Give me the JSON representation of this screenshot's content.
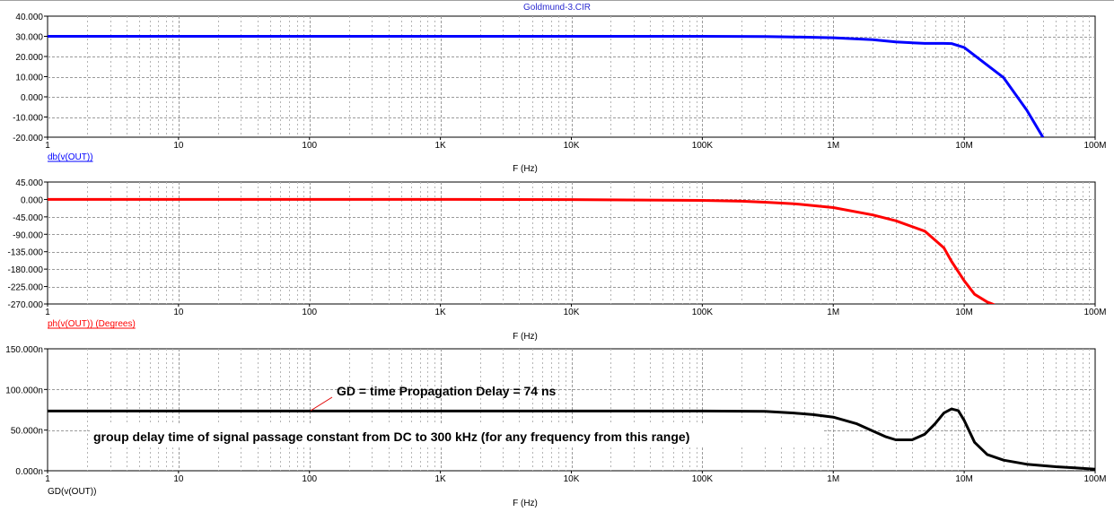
{
  "window_title": "Goldmund-3.CIR",
  "x_tick_labels": [
    "1",
    "10",
    "100",
    "1K",
    "10K",
    "100K",
    "1M",
    "10M",
    "100M"
  ],
  "chart_data": [
    {
      "type": "line",
      "trace_label": "db(v(OUT))",
      "xlabel": "F (Hz)",
      "x_scale": "log",
      "xlim": [
        1,
        100000000
      ],
      "ylim": [
        -20,
        40
      ],
      "y_ticks": [
        "40.000",
        "30.000",
        "20.000",
        "10.000",
        "0.000",
        "-10.000",
        "-20.000"
      ],
      "grid": true,
      "color": "#0000ff",
      "series": [
        {
          "x": [
            1,
            10,
            100,
            1000,
            10000,
            100000,
            300000,
            500000,
            1000000,
            2000000,
            3000000,
            5000000,
            7000000,
            8000000,
            10000000,
            20000000,
            30000000,
            40000000
          ],
          "values": [
            30,
            30,
            30,
            30,
            30,
            30,
            29.9,
            29.7,
            29.3,
            28.3,
            27.2,
            26.5,
            26.5,
            26.4,
            24.5,
            9.5,
            -6.5,
            -20.2
          ]
        }
      ]
    },
    {
      "type": "line",
      "trace_label": "ph(v(OUT)) (Degrees)",
      "xlabel": "F (Hz)",
      "x_scale": "log",
      "xlim": [
        1,
        100000000
      ],
      "ylim": [
        -270,
        45
      ],
      "y_ticks": [
        "45.000",
        "0.000",
        "-45.000",
        "-90.000",
        "-135.000",
        "-180.000",
        "-225.000",
        "-270.000"
      ],
      "grid": true,
      "color": "#ff0000",
      "series": [
        {
          "x": [
            1,
            10,
            100,
            1000,
            10000,
            100000,
            200000,
            300000,
            500000,
            1000000,
            2000000,
            3000000,
            5000000,
            7000000,
            8000000,
            10000000,
            12000000,
            15000000,
            17000000
          ],
          "values": [
            0,
            0,
            0,
            0,
            -0.5,
            -2.5,
            -4.5,
            -7,
            -11,
            -21,
            -40,
            -55,
            -82,
            -125,
            -160,
            -210,
            -245,
            -265,
            -272
          ]
        }
      ]
    },
    {
      "type": "line",
      "trace_label": "GD(v(OUT))",
      "xlabel": "F (Hz)",
      "x_scale": "log",
      "xlim": [
        1,
        100000000
      ],
      "ylim": [
        0,
        150
      ],
      "y_ticks": [
        "150.000n",
        "100.000n",
        "50.000n",
        "0.000n"
      ],
      "grid": true,
      "color": "#000000",
      "annotations": [
        "GD = time Propagation Delay = 74 ns",
        "group delay time of signal passage constant from DC to 300 kHz (for any frequency from this range)"
      ],
      "series": [
        {
          "x": [
            1,
            10,
            100,
            1000,
            10000,
            100000,
            300000,
            500000,
            700000,
            1000000,
            1500000,
            2000000,
            2500000,
            3000000,
            4000000,
            5000000,
            6000000,
            7000000,
            8000000,
            9000000,
            10000000,
            12000000,
            15000000,
            20000000,
            30000000,
            50000000,
            70000000,
            100000000
          ],
          "values": [
            73.5,
            73.5,
            73.5,
            73.5,
            73.5,
            73.5,
            73,
            71,
            69,
            66,
            58,
            49,
            42,
            38,
            38,
            45,
            58,
            71,
            76,
            74,
            62,
            35,
            20,
            13,
            8,
            5,
            3.5,
            2
          ]
        }
      ]
    }
  ]
}
